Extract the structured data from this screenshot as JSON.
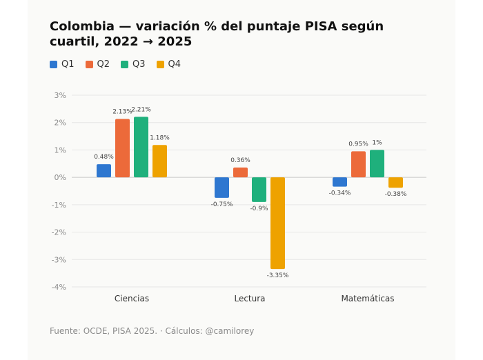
{
  "chart_data": {
    "type": "bar",
    "title": "Colombia — variación % del puntaje PISA según cuartil, 2022 → 2025",
    "categories": [
      "Ciencias",
      "Lectura",
      "Matemáticas"
    ],
    "series": [
      {
        "name": "Q1",
        "color": "#2e77d0",
        "values": [
          0.48,
          -0.75,
          -0.34
        ],
        "labels": [
          "0.48%",
          "-0.75%",
          "-0.34%"
        ]
      },
      {
        "name": "Q2",
        "color": "#ec6a3a",
        "values": [
          2.13,
          0.36,
          0.95
        ],
        "labels": [
          "2.13%",
          "0.36%",
          "0.95%"
        ]
      },
      {
        "name": "Q3",
        "color": "#1fb07c",
        "values": [
          2.21,
          -0.9,
          1.0
        ],
        "labels": [
          "2.21%",
          "-0.9%",
          "1%"
        ]
      },
      {
        "name": "Q4",
        "color": "#eea200",
        "values": [
          1.18,
          -3.35,
          -0.38
        ],
        "labels": [
          "1.18%",
          "-3.35%",
          "-0.38%"
        ]
      }
    ],
    "ylim": [
      -4,
      3
    ],
    "yticks": [
      {
        "value": 3,
        "label": "3%"
      },
      {
        "value": 2,
        "label": "2%"
      },
      {
        "value": 1,
        "label": "1%"
      },
      {
        "value": 0,
        "label": "0%"
      },
      {
        "value": -1,
        "label": "-1%"
      },
      {
        "value": -2,
        "label": "-2%"
      },
      {
        "value": -3,
        "label": "-3%"
      },
      {
        "value": -4,
        "label": "-4%"
      }
    ],
    "grid": true,
    "legend_position": "top-left"
  },
  "footer": {
    "text": "Fuente: OCDE, PISA 2025.  ·  Cálculos: @camilorey"
  }
}
